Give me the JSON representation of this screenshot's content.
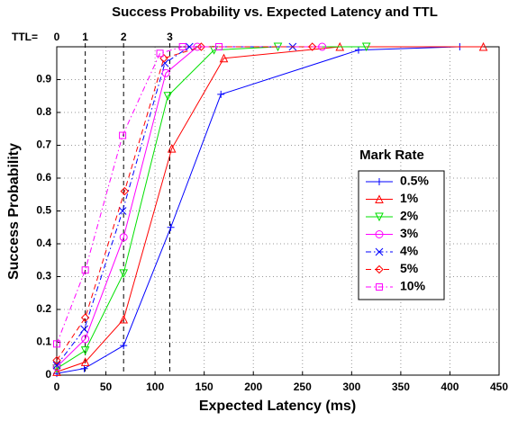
{
  "chart_data": {
    "type": "line",
    "title": "Success Probability vs. Expected Latency and TTL",
    "x_label": "Expected Latency (ms)",
    "y_label": "Success Probability",
    "xlim": [
      0,
      450
    ],
    "xticks": [
      0,
      50,
      100,
      150,
      200,
      250,
      300,
      350,
      400,
      450
    ],
    "ylim": [
      0,
      1
    ],
    "yticks": [
      0,
      0.1,
      0.2,
      0.3,
      0.4,
      0.5,
      0.6,
      0.7,
      0.8,
      0.9
    ],
    "grid": true,
    "legend_title": "Mark Rate",
    "legend_position": "right",
    "ttl": {
      "title": "TTL=",
      "levels": [
        0,
        1,
        2,
        3
      ],
      "x": [
        0,
        29,
        68,
        115
      ]
    },
    "series": [
      {
        "name": "0.5%",
        "color": "#0000ff",
        "marker": "plus",
        "dash": "solid",
        "x": [
          0,
          28,
          68,
          116,
          167,
          307,
          410
        ],
        "values": [
          0.005,
          0.02,
          0.09,
          0.45,
          0.855,
          0.99,
          1.0
        ]
      },
      {
        "name": "1%",
        "color": "#ff0000",
        "marker": "triangle-up",
        "dash": "solid",
        "x": [
          0,
          29,
          68,
          117,
          170,
          288,
          434
        ],
        "values": [
          0.01,
          0.04,
          0.17,
          0.69,
          0.965,
          1.0,
          1.0
        ]
      },
      {
        "name": "2%",
        "color": "#00e000",
        "marker": "triangle-down",
        "dash": "solid",
        "x": [
          0,
          29,
          68,
          113,
          160,
          225,
          315
        ],
        "values": [
          0.02,
          0.075,
          0.31,
          0.85,
          0.99,
          1.0,
          1.0
        ]
      },
      {
        "name": "3%",
        "color": "#ff00ff",
        "marker": "circle",
        "dash": "solid",
        "x": [
          0,
          29,
          68,
          111,
          143,
          270
        ],
        "values": [
          0.025,
          0.11,
          0.42,
          0.92,
          1.0,
          1.0
        ]
      },
      {
        "name": "4%",
        "color": "#0000ff",
        "marker": "cross",
        "dash": "dashdot",
        "x": [
          0,
          28,
          67,
          110,
          135,
          240
        ],
        "values": [
          0.03,
          0.14,
          0.5,
          0.95,
          1.0,
          1.0
        ]
      },
      {
        "name": "5%",
        "color": "#ff0000",
        "marker": "diamond",
        "dash": "dashed",
        "x": [
          0,
          29,
          69,
          109,
          147,
          260
        ],
        "values": [
          0.045,
          0.175,
          0.56,
          0.965,
          1.0,
          1.0
        ]
      },
      {
        "name": "10%",
        "color": "#ff00ff",
        "marker": "square",
        "dash": "dashdot",
        "x": [
          0,
          29,
          67,
          105,
          128,
          165
        ],
        "values": [
          0.095,
          0.32,
          0.73,
          0.98,
          1.0,
          1.0
        ]
      }
    ]
  }
}
